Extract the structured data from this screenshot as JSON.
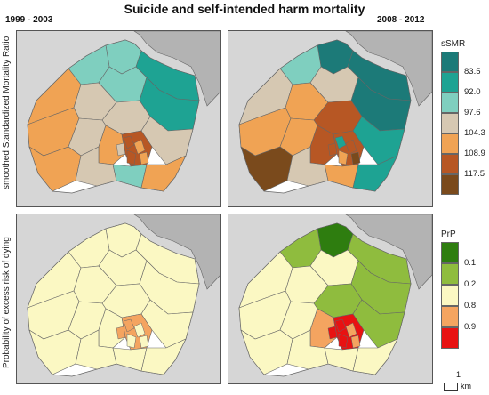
{
  "title": "Suicide and self-intended harm mortality",
  "periods": {
    "left": "1999 - 2003",
    "right": "2008 - 2012"
  },
  "row_labels": {
    "top": "smoothed Standardized Mortality Ratio",
    "bottom": "Probability of excess risk of dying"
  },
  "legend_ssmr": {
    "title": "sSMR",
    "classes": [
      {
        "label": "",
        "color": "#1c7a78"
      },
      {
        "label": "83.5",
        "color": "#1ea393"
      },
      {
        "label": "92.0",
        "color": "#7fcfbf"
      },
      {
        "label": "97.6",
        "color": "#d6c8b2"
      },
      {
        "label": "104.3",
        "color": "#f0a354"
      },
      {
        "label": "108.9",
        "color": "#b75724"
      },
      {
        "label": "117.5",
        "color": "#7a4a1c"
      }
    ]
  },
  "legend_prp": {
    "title": "PrP",
    "classes": [
      {
        "label": "",
        "color": "#2e7d0f"
      },
      {
        "label": "0.1",
        "color": "#8fbc3e"
      },
      {
        "label": "0.2",
        "color": "#fbf8c3"
      },
      {
        "label": "0.8",
        "color": "#f4a460"
      },
      {
        "label": "0.9",
        "color": "#e81212"
      }
    ]
  },
  "scale_bar": {
    "value": "1",
    "unit": "km"
  },
  "colors": {
    "sea": "#d6d6d6",
    "land_outside": "#b3b3b3",
    "border": "#666666"
  }
}
